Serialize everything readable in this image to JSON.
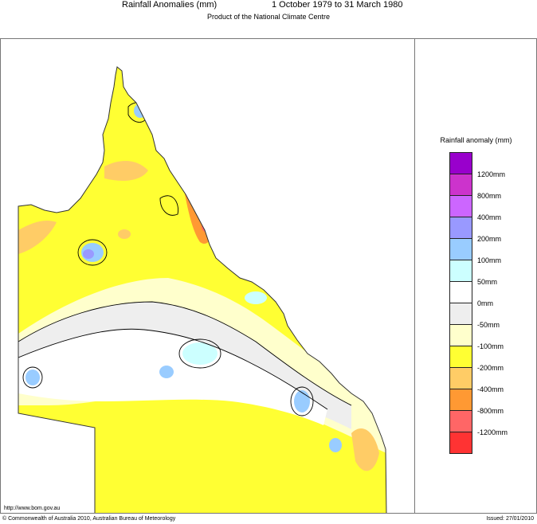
{
  "header": {
    "title": "Rainfall Anomalies (mm)",
    "period": "1 October 1979 to 31 March 1980",
    "subtitle": "Product of the National Climate Centre"
  },
  "legend": {
    "title": "Rainfall anomaly (mm)",
    "items": [
      {
        "label": "",
        "color": "#9900cc"
      },
      {
        "label": "1200mm",
        "color": "#cc33cc"
      },
      {
        "label": "800mm",
        "color": "#cc66ff"
      },
      {
        "label": "400mm",
        "color": "#9999ff"
      },
      {
        "label": "200mm",
        "color": "#99ccff"
      },
      {
        "label": "100mm",
        "color": "#ccffff"
      },
      {
        "label": "50mm",
        "color": "#ffffff"
      },
      {
        "label": "0mm",
        "color": "#eeeeee"
      },
      {
        "label": "-50mm",
        "color": "#ffffcc"
      },
      {
        "label": "-100mm",
        "color": "#ffff33"
      },
      {
        "label": "-200mm",
        "color": "#ffcc66"
      },
      {
        "label": "-400mm",
        "color": "#ff9933"
      },
      {
        "label": "-800mm",
        "color": "#ff6666"
      },
      {
        "label": "-1200mm",
        "color": "#ff3333"
      }
    ]
  },
  "footer": {
    "url": "http://www.bom.gov.au",
    "copyright": "© Commonwealth of Australia 2010, Australian Bureau of Meteorology",
    "issued": "Issued: 27/01/2010"
  }
}
